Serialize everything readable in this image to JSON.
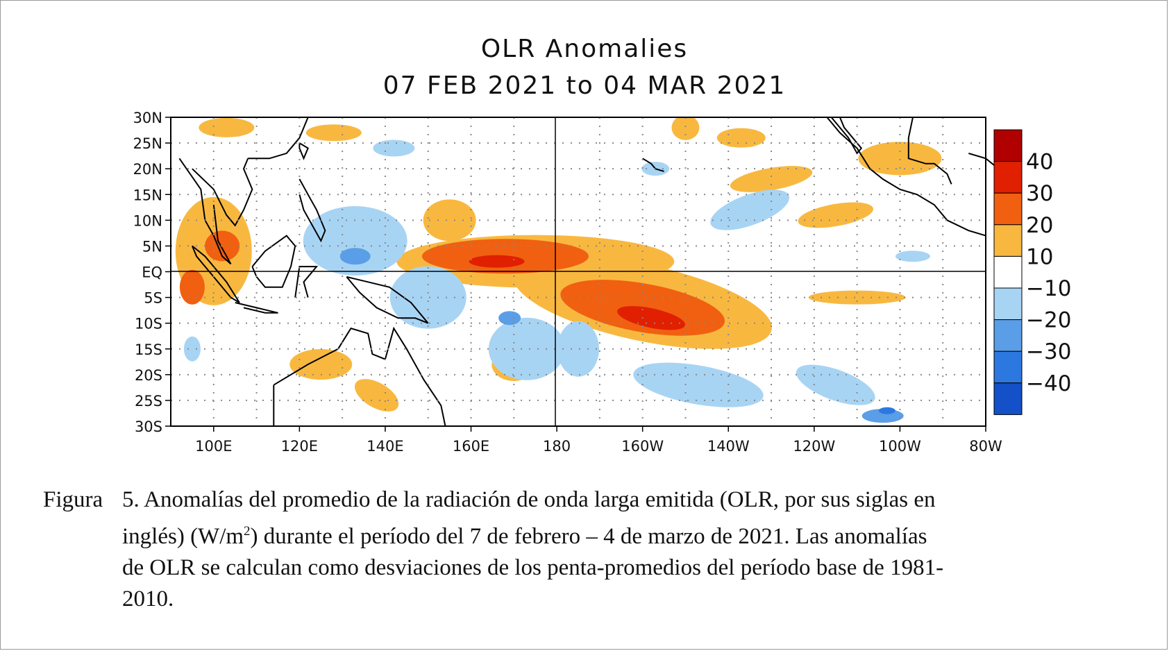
{
  "figure": {
    "title_line1": "OLR Anomalies",
    "title_line2": "07 FEB 2021 to 04 MAR 2021"
  },
  "axes": {
    "y_ticks": [
      "30N",
      "25N",
      "20N",
      "15N",
      "10N",
      "5N",
      "EQ",
      "5S",
      "10S",
      "15S",
      "20S",
      "25S",
      "30S"
    ],
    "x_ticks": [
      "100E",
      "120E",
      "140E",
      "160E",
      "180",
      "160W",
      "140W",
      "120W",
      "100W",
      "80W"
    ]
  },
  "colorbar": {
    "labels": [
      "40",
      "30",
      "20",
      "10",
      "−10",
      "−20",
      "−30",
      "−40"
    ],
    "colors": [
      "#b00000",
      "#e02000",
      "#f06010",
      "#f8b840",
      "#ffffff",
      "#a8d4f4",
      "#5a9ee8",
      "#2c78e0",
      "#1450c8"
    ]
  },
  "palette": {
    "pos_10": "#f8b840",
    "pos_20": "#f06010",
    "pos_30": "#e02000",
    "neg_10": "#a8d4f4",
    "neg_20": "#5a9ee8",
    "neg_30": "#2c78e0"
  },
  "caption": {
    "label": "Figura",
    "line1": "5. Anomalías del promedio de la radiación de onda larga emitida (OLR, por sus siglas en",
    "line2_a": "inglés) (W/m",
    "line2_sup": "2",
    "line2_b": ") durante el período del 7 de febrero – 4 de marzo de 2021.  Las anomalías",
    "line3": "de OLR se calculan como desviaciones de los penta-promedios  del período base de 1981-",
    "line4": "2010."
  }
}
